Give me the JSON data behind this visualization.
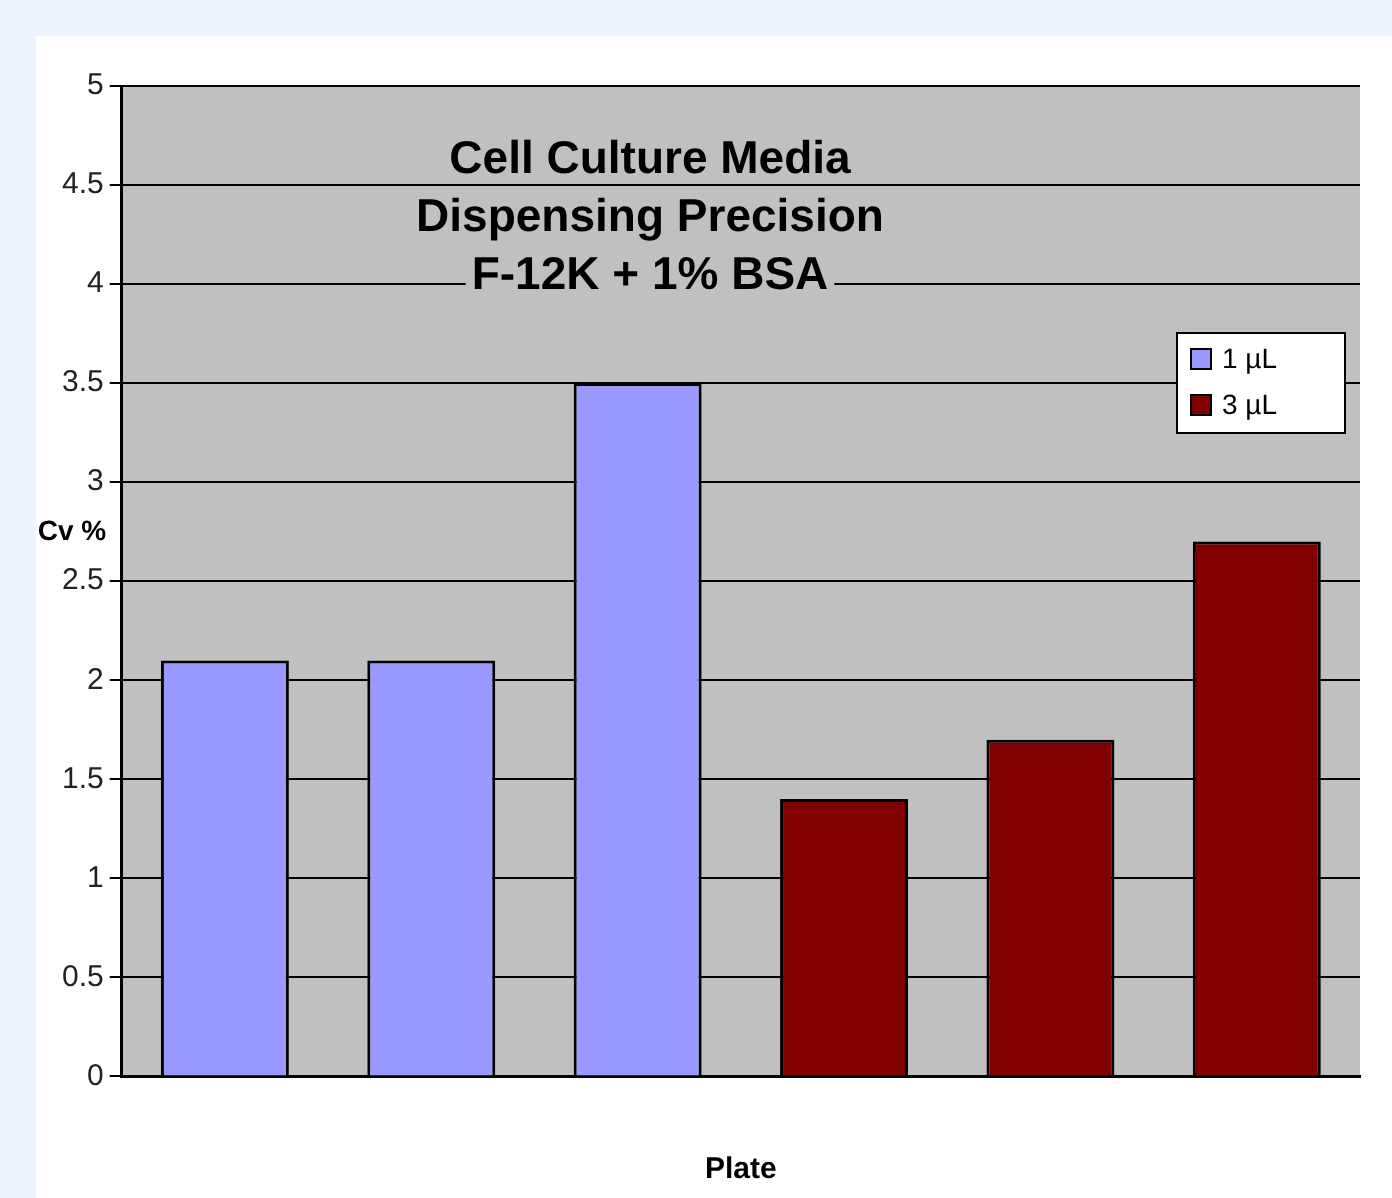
{
  "chart_data": {
    "type": "bar",
    "title": "Cell Culture Media\nDispensing Precision\nF-12K + 1% BSA",
    "xlabel": "Plate",
    "ylabel": "Cv %",
    "categories": [
      null,
      null,
      null,
      null,
      null,
      null
    ],
    "series": [
      {
        "name": "1 µL",
        "color": "#9999ff",
        "values": [
          2.1,
          2.1,
          3.5,
          null,
          null,
          null
        ]
      },
      {
        "name": "3 µL",
        "color": "#800000",
        "values": [
          null,
          null,
          null,
          1.4,
          1.7,
          2.7
        ]
      }
    ],
    "ylim": [
      0,
      5
    ],
    "yticks": [
      0,
      0.5,
      1,
      1.5,
      2,
      2.5,
      3,
      3.5,
      4,
      4.5,
      5
    ],
    "grid": "y",
    "legend": "top right"
  }
}
